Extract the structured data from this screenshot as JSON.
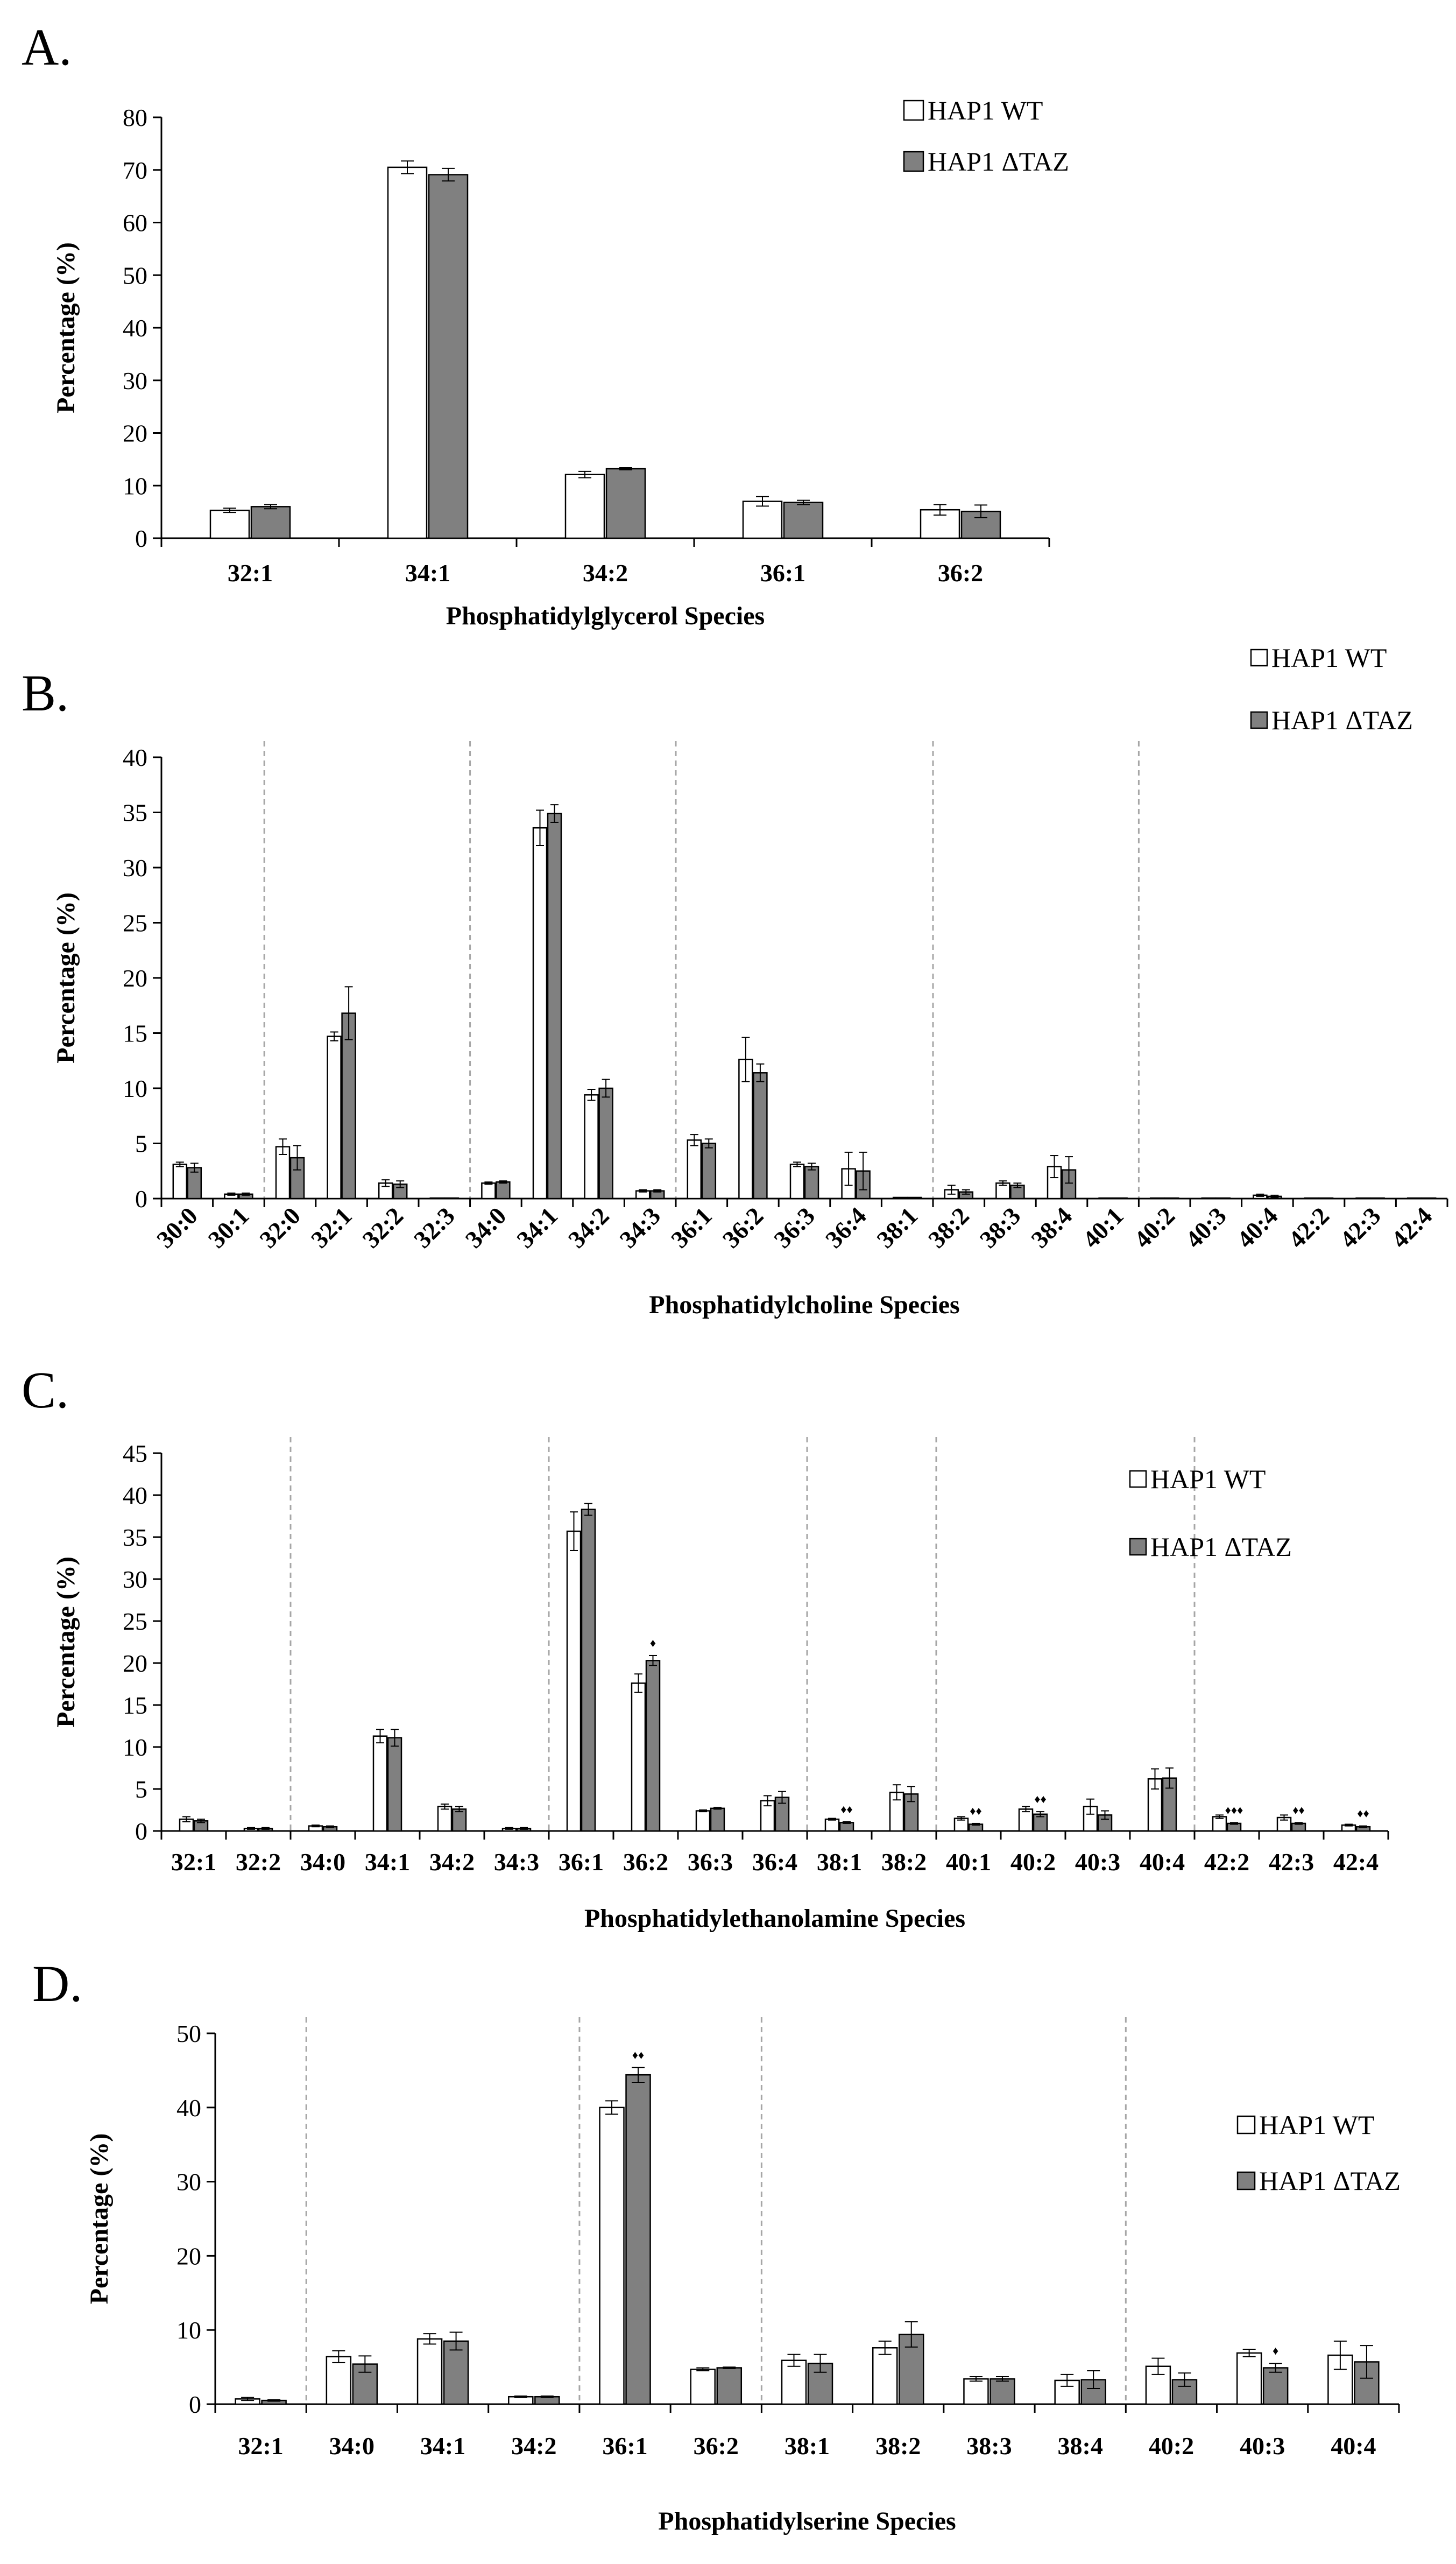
{
  "colors": {
    "wt": "#ffffff",
    "taz": "#808080",
    "axis": "#000000",
    "divider": "#a6a6a6"
  },
  "legend": {
    "wt": "HAP1 WT",
    "taz": "HAP1 ΔTAZ"
  },
  "chart_data": [
    {
      "id": "A",
      "panel_label": "A.",
      "type": "bar",
      "title": "",
      "xlabel": "Phosphatidylglycerol Species",
      "ylabel": "Percentage (%)",
      "ylim": [
        0,
        80
      ],
      "yticks": [
        0,
        10,
        20,
        30,
        40,
        50,
        60,
        70,
        80
      ],
      "legend_position": "top-right",
      "groups": [],
      "categories": [
        "32:1",
        "34:1",
        "34:2",
        "36:1",
        "36:2"
      ],
      "series": [
        {
          "name": "HAP1 WT",
          "values": [
            5.3,
            70.5,
            12.1,
            7.0,
            5.4
          ],
          "errors": [
            0.4,
            1.2,
            0.6,
            0.9,
            1.0
          ]
        },
        {
          "name": "HAP1 ΔTAZ",
          "values": [
            6.0,
            69.1,
            13.2,
            6.8,
            5.1
          ],
          "errors": [
            0.4,
            1.2,
            0.2,
            0.4,
            1.2
          ]
        }
      ],
      "significance": []
    },
    {
      "id": "B",
      "panel_label": "B.",
      "type": "bar",
      "title": "",
      "xlabel": "Phosphatidylcholine Species",
      "ylabel": "Percentage (%)",
      "ylim": [
        0,
        40
      ],
      "yticks": [
        0,
        5,
        10,
        15,
        20,
        25,
        30,
        35,
        40
      ],
      "legend_position": "top-right",
      "groups": [
        2,
        6,
        10,
        15,
        19
      ],
      "categories": [
        "30:0",
        "30:1",
        "32:0",
        "32:1",
        "32:2",
        "32:3",
        "34:0",
        "34:1",
        "34:2",
        "34:3",
        "36:1",
        "36:2",
        "36:3",
        "36:4",
        "38:1",
        "38:2",
        "38:3",
        "38:4",
        "40:1",
        "40:2",
        "40:3",
        "40:4",
        "42:2",
        "42:3",
        "42:4"
      ],
      "series": [
        {
          "name": "HAP1 WT",
          "values": [
            3.1,
            0.4,
            4.7,
            14.7,
            1.4,
            0.05,
            1.4,
            33.6,
            9.4,
            0.7,
            5.3,
            12.6,
            3.1,
            2.7,
            0.1,
            0.8,
            1.4,
            2.9,
            0.05,
            0.05,
            0.05,
            0.3,
            0.05,
            0.05,
            0.05
          ],
          "errors": [
            0.2,
            0.1,
            0.7,
            0.4,
            0.3,
            0.0,
            0.1,
            1.6,
            0.5,
            0.1,
            0.5,
            2.0,
            0.2,
            1.5,
            0.0,
            0.4,
            0.2,
            1.0,
            0.0,
            0.0,
            0.0,
            0.1,
            0.0,
            0.0,
            0.0
          ]
        },
        {
          "name": "HAP1 ΔTAZ",
          "values": [
            2.8,
            0.4,
            3.7,
            16.8,
            1.3,
            0.05,
            1.5,
            34.9,
            10.0,
            0.7,
            5.0,
            11.4,
            2.9,
            2.5,
            0.1,
            0.6,
            1.2,
            2.6,
            0.05,
            0.05,
            0.05,
            0.2,
            0.05,
            0.05,
            0.05
          ],
          "errors": [
            0.4,
            0.1,
            1.1,
            2.4,
            0.3,
            0.0,
            0.1,
            0.8,
            0.8,
            0.1,
            0.4,
            0.8,
            0.3,
            1.7,
            0.0,
            0.2,
            0.2,
            1.2,
            0.0,
            0.0,
            0.0,
            0.1,
            0.0,
            0.0,
            0.0
          ]
        }
      ],
      "significance": []
    },
    {
      "id": "C",
      "panel_label": "C.",
      "type": "bar",
      "title": "",
      "xlabel": "Phosphatidylethanolamine Species",
      "ylabel": "Percentage (%)",
      "ylim": [
        0,
        45
      ],
      "yticks": [
        0,
        5,
        10,
        15,
        20,
        25,
        30,
        35,
        40,
        45
      ],
      "legend_position": "top-right",
      "groups": [
        2,
        6,
        10,
        12,
        16
      ],
      "categories": [
        "32:1",
        "32:2",
        "34:0",
        "34:1",
        "34:2",
        "34:3",
        "36:1",
        "36:2",
        "36:3",
        "36:4",
        "38:1",
        "38:2",
        "40:1",
        "40:2",
        "40:3",
        "40:4",
        "42:2",
        "42:3",
        "42:4"
      ],
      "series": [
        {
          "name": "HAP1 WT",
          "values": [
            1.4,
            0.3,
            0.6,
            11.3,
            2.9,
            0.3,
            35.7,
            17.6,
            2.4,
            3.6,
            1.4,
            4.6,
            1.5,
            2.6,
            2.9,
            6.2,
            1.7,
            1.6,
            0.7
          ],
          "errors": [
            0.3,
            0.1,
            0.1,
            0.8,
            0.3,
            0.1,
            2.3,
            1.1,
            0.1,
            0.6,
            0.1,
            0.9,
            0.2,
            0.3,
            0.9,
            1.2,
            0.2,
            0.3,
            0.1
          ]
        },
        {
          "name": "HAP1 ΔTAZ",
          "values": [
            1.2,
            0.3,
            0.5,
            11.1,
            2.6,
            0.3,
            38.3,
            20.3,
            2.7,
            4.0,
            1.0,
            4.4,
            0.8,
            2.0,
            1.9,
            6.3,
            0.9,
            0.9,
            0.5
          ],
          "errors": [
            0.2,
            0.1,
            0.1,
            1.0,
            0.3,
            0.1,
            0.7,
            0.6,
            0.1,
            0.7,
            0.1,
            0.9,
            0.1,
            0.3,
            0.5,
            1.2,
            0.1,
            0.1,
            0.1
          ]
        }
      ],
      "significance": [
        {
          "index": 7,
          "marks": "♦"
        },
        {
          "index": 10,
          "marks": "♦♦"
        },
        {
          "index": 12,
          "marks": "♦♦"
        },
        {
          "index": 13,
          "marks": "♦♦"
        },
        {
          "index": 16,
          "marks": "♦♦♦"
        },
        {
          "index": 17,
          "marks": "♦♦"
        },
        {
          "index": 18,
          "marks": "♦♦"
        }
      ]
    },
    {
      "id": "D",
      "panel_label": "D.",
      "type": "bar",
      "title": "",
      "xlabel": "Phosphatidylserine Species",
      "ylabel": "Percentage (%)",
      "ylim": [
        0,
        50
      ],
      "yticks": [
        0,
        10,
        20,
        30,
        40,
        50
      ],
      "legend_position": "top-right",
      "groups": [
        1,
        4,
        6,
        10
      ],
      "categories": [
        "32:1",
        "34:0",
        "34:1",
        "34:2",
        "36:1",
        "36:2",
        "38:1",
        "38:2",
        "38:3",
        "38:4",
        "40:2",
        "40:3",
        "40:4"
      ],
      "series": [
        {
          "name": "HAP1 WT",
          "values": [
            0.7,
            6.4,
            8.8,
            1.0,
            40.0,
            4.7,
            5.9,
            7.6,
            3.4,
            3.2,
            5.1,
            6.9,
            6.6
          ],
          "errors": [
            0.2,
            0.8,
            0.7,
            0.1,
            0.9,
            0.2,
            0.8,
            0.9,
            0.3,
            0.8,
            1.1,
            0.5,
            1.9
          ]
        },
        {
          "name": "HAP1 ΔTAZ",
          "values": [
            0.5,
            5.4,
            8.5,
            1.0,
            44.4,
            4.9,
            5.5,
            9.4,
            3.4,
            3.3,
            3.3,
            4.9,
            5.7
          ],
          "errors": [
            0.1,
            1.1,
            1.2,
            0.1,
            1.0,
            0.1,
            1.2,
            1.7,
            0.3,
            1.2,
            0.9,
            0.6,
            2.2
          ]
        }
      ],
      "significance": [
        {
          "index": 4,
          "marks": "♦♦"
        },
        {
          "index": 11,
          "marks": "♦"
        }
      ]
    }
  ]
}
